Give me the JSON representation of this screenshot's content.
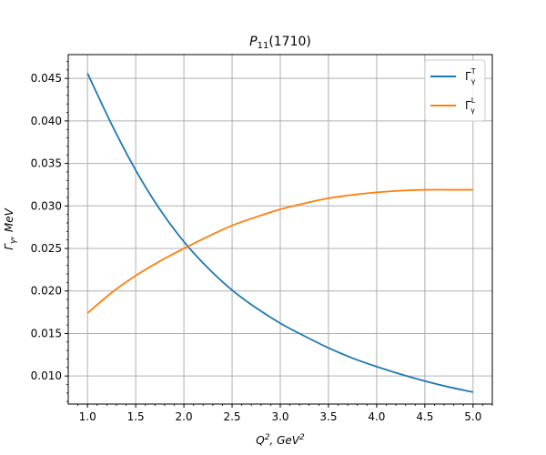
{
  "chart_data": {
    "type": "line",
    "title": {
      "main": "P",
      "sub": "11",
      "suffix": "(1710)"
    },
    "xlabel": {
      "base": "Q",
      "sup": "2",
      "unit_base": ", GeV",
      "unit_sup": "2"
    },
    "ylabel": {
      "base": "Γ",
      "sub": "γ",
      "rest": ", MeV"
    },
    "xlim": [
      0.8,
      5.2
    ],
    "ylim": [
      0.0067,
      0.0478
    ],
    "x_ticks": [
      1.0,
      1.5,
      2.0,
      2.5,
      3.0,
      3.5,
      4.0,
      4.5,
      5.0
    ],
    "x_tick_labels": [
      "1.0",
      "1.5",
      "2.0",
      "2.5",
      "3.0",
      "3.5",
      "4.0",
      "4.5",
      "5.0"
    ],
    "y_ticks": [
      0.01,
      0.015,
      0.02,
      0.025,
      0.03,
      0.035,
      0.04,
      0.045
    ],
    "y_tick_labels": [
      "0.010",
      "0.015",
      "0.020",
      "0.025",
      "0.030",
      "0.035",
      "0.040",
      "0.045"
    ],
    "grid": true,
    "legend_position": "top-right",
    "x": [
      1.0,
      1.25,
      1.5,
      1.75,
      2.0,
      2.25,
      2.5,
      2.75,
      3.0,
      3.25,
      3.5,
      3.75,
      4.0,
      4.25,
      4.5,
      4.75,
      5.0
    ],
    "series": [
      {
        "name": {
          "base": "Γ",
          "sup": "T",
          "sub": "γ"
        },
        "color": "#1f77b4",
        "values": [
          0.0456,
          0.0396,
          0.0342,
          0.0296,
          0.0258,
          0.0227,
          0.0201,
          0.018,
          0.0162,
          0.0147,
          0.0133,
          0.0121,
          0.0111,
          0.0102,
          0.0094,
          0.0087,
          0.0081
        ]
      },
      {
        "name": {
          "base": "Γ",
          "sup": "L",
          "sub": "γ"
        },
        "color": "#ff7f0e",
        "values": [
          0.0174,
          0.0198,
          0.0218,
          0.0235,
          0.025,
          0.0264,
          0.0277,
          0.0287,
          0.0296,
          0.0303,
          0.0309,
          0.0313,
          0.0316,
          0.0318,
          0.0319,
          0.0319,
          0.0319
        ]
      }
    ]
  }
}
